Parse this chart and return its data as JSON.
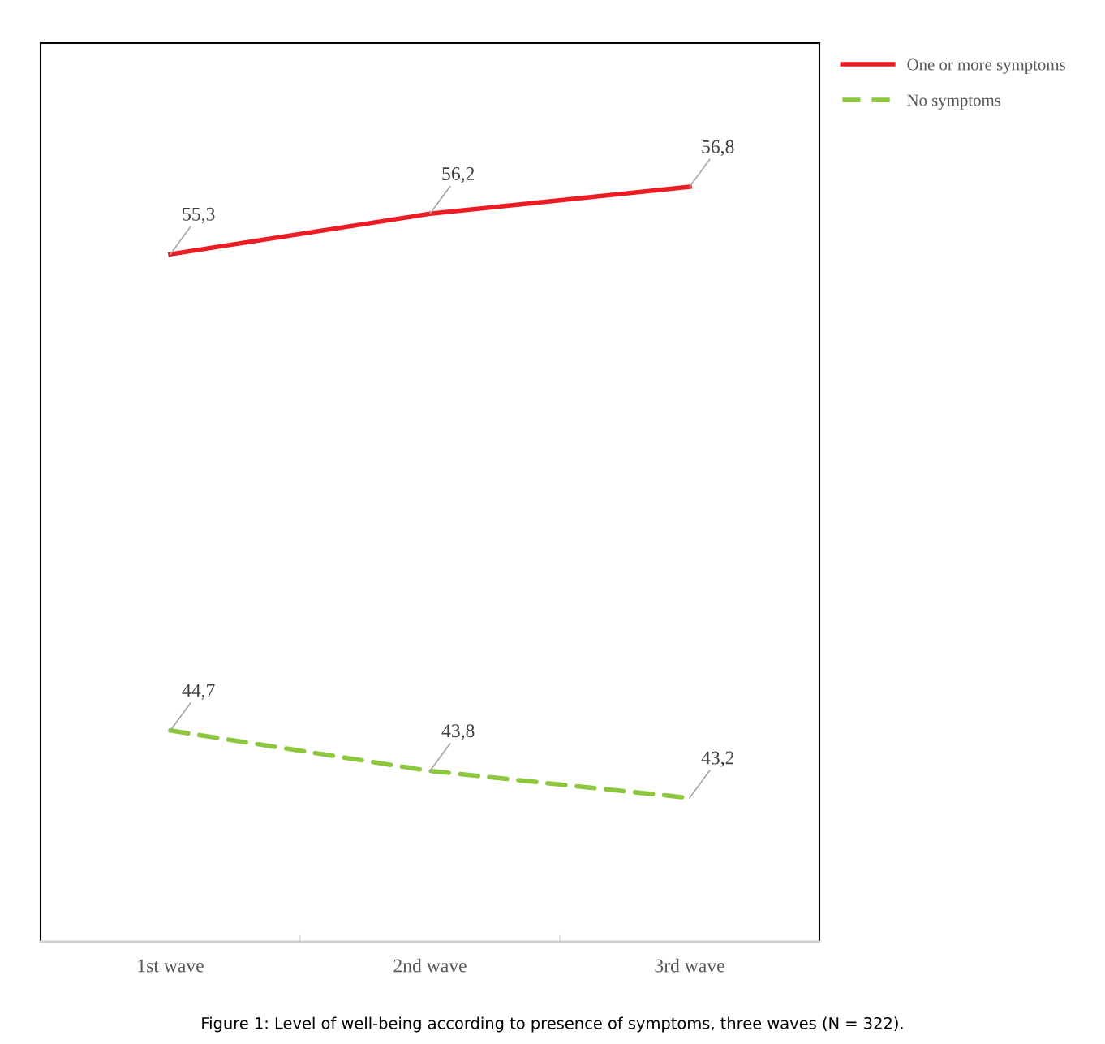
{
  "chart_data": {
    "type": "line",
    "categories": [
      "1st wave",
      "2nd wave",
      "3rd wave"
    ],
    "series": [
      {
        "name": "One or more symptoms",
        "color": "#ed1c24",
        "values": [
          55.3,
          56.2,
          56.8
        ],
        "value_labels": [
          "55,3",
          "56,2",
          "56,8"
        ],
        "line_style": "solid"
      },
      {
        "name": "No symptoms",
        "color": "#8dc63f",
        "values": [
          44.7,
          43.8,
          43.2
        ],
        "value_labels": [
          "44,7",
          "43,8",
          "43,2"
        ],
        "line_style": "dashed"
      }
    ],
    "ylim": [
      40,
      60
    ],
    "tick_labels": "x",
    "legend": "top right",
    "grid": false,
    "marker": "none",
    "annotations": [
      "Figure 1: Level of well-being according to presence of symptoms, three waves (N = 322)."
    ]
  }
}
